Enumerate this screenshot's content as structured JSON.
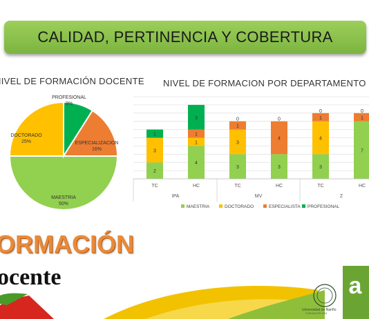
{
  "banner": {
    "title": "CALIDAD, PERTINENCIA Y COBERTURA"
  },
  "chart_data": [
    {
      "type": "pie",
      "title": "NIVEL DE FORMACIÓN DOCENTE",
      "slices": [
        {
          "label": "MAESTRIA",
          "value": 50,
          "pct": "50%",
          "color": "#92d050"
        },
        {
          "label": "DOCTORADO",
          "value": 25,
          "pct": "25%",
          "color": "#ffc000"
        },
        {
          "label": "PROFESIONAL",
          "value": 9,
          "pct": "9%",
          "color": "#00b050"
        },
        {
          "label": "ESPECIALIZACION",
          "value": 16,
          "pct": "16%",
          "color": "#ed7d31"
        }
      ]
    },
    {
      "type": "bar",
      "stacked": true,
      "title": "NIVEL DE FORMACION POR DEPARTAMENTO",
      "categories": [
        "TC",
        "HC",
        "TC",
        "HC",
        "TC",
        "HC"
      ],
      "groups": [
        {
          "label": "IPA",
          "span": 2
        },
        {
          "label": "MV",
          "span": 2
        },
        {
          "label": "Z",
          "span": 2
        }
      ],
      "ylim": [
        0,
        10
      ],
      "grid": true,
      "legend_position": "bottom",
      "series": [
        {
          "name": "MAESTRIA",
          "color": "#92d050",
          "values": [
            2,
            4,
            3,
            3,
            3,
            7
          ]
        },
        {
          "name": "DOCTORADO",
          "color": "#ffc000",
          "values": [
            3,
            1,
            3,
            0,
            4,
            0
          ]
        },
        {
          "name": "ESPECIALISTA",
          "color": "#ed7d31",
          "values": [
            0,
            1,
            1,
            4,
            1,
            1
          ]
        },
        {
          "name": "PROFESIONAL",
          "color": "#00b050",
          "values": [
            1,
            3,
            0,
            0,
            0,
            0
          ]
        }
      ]
    }
  ],
  "footer": {
    "word1": "ORMACIÓN",
    "word2": "ocente",
    "logo_caption": "Universidad de Nariño",
    "logo_sub": "FUNDADA EN 1904"
  },
  "colors": {
    "banner": "#8cc44e",
    "orange_text": "#e98a3a",
    "wave_green": "#8fbf3a",
    "wave_yellow": "#f2c200",
    "wave_red": "#d7261e"
  }
}
